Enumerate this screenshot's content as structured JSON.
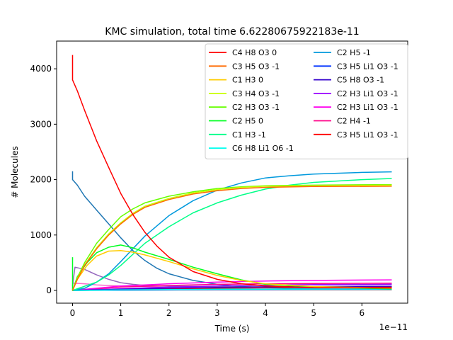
{
  "chart_data": {
    "type": "line",
    "title": "KMC simulation, total time 6.62280675922183e-11",
    "xlabel": "Time (s)",
    "ylabel": "# Molecules",
    "x_offset_label": "1e−11",
    "xlim": [
      -0.33,
      6.95
    ],
    "ylim": [
      -230,
      4500
    ],
    "xticks": [
      0,
      1,
      2,
      3,
      4,
      5,
      6
    ],
    "yticks": [
      0,
      1000,
      2000,
      3000,
      4000
    ],
    "grid": false,
    "legend": {
      "placement": "top-right",
      "columns": 2
    },
    "series": [
      {
        "name": "C4 H8 O3 0",
        "color": "#ff0000",
        "points": [
          [
            0,
            4250
          ],
          [
            0,
            3800
          ],
          [
            0.1,
            3600
          ],
          [
            0.25,
            3250
          ],
          [
            0.5,
            2700
          ],
          [
            0.75,
            2220
          ],
          [
            1,
            1750
          ],
          [
            1.25,
            1370
          ],
          [
            1.5,
            1050
          ],
          [
            1.75,
            800
          ],
          [
            2,
            600
          ],
          [
            2.5,
            340
          ],
          [
            3,
            200
          ],
          [
            3.5,
            120
          ],
          [
            4,
            80
          ],
          [
            5,
            50
          ],
          [
            6.62,
            45
          ]
        ]
      },
      {
        "name": "C3 H5 O3 -1",
        "color": "#ff6a00",
        "points": [
          [
            0,
            0
          ],
          [
            0.1,
            200
          ],
          [
            0.25,
            450
          ],
          [
            0.5,
            750
          ],
          [
            0.75,
            1000
          ],
          [
            1,
            1200
          ],
          [
            1.25,
            1370
          ],
          [
            1.5,
            1500
          ],
          [
            2,
            1640
          ],
          [
            2.5,
            1740
          ],
          [
            3,
            1800
          ],
          [
            3.5,
            1840
          ],
          [
            4,
            1860
          ],
          [
            5,
            1875
          ],
          [
            6.62,
            1880
          ]
        ]
      },
      {
        "name": "C1 H3 0",
        "color": "#ffcc00",
        "points": [
          [
            0,
            0
          ],
          [
            0.1,
            200
          ],
          [
            0.3,
            450
          ],
          [
            0.5,
            620
          ],
          [
            0.75,
            710
          ],
          [
            1,
            720
          ],
          [
            1.25,
            690
          ],
          [
            1.5,
            640
          ],
          [
            2,
            520
          ],
          [
            2.5,
            390
          ],
          [
            3,
            270
          ],
          [
            3.5,
            180
          ],
          [
            4,
            120
          ],
          [
            5,
            70
          ],
          [
            6.62,
            40
          ]
        ]
      },
      {
        "name": "C3 H4 O3 -1",
        "color": "#c8ff00",
        "points": [
          [
            0,
            0
          ],
          [
            0.1,
            210
          ],
          [
            0.25,
            460
          ],
          [
            0.5,
            770
          ],
          [
            0.75,
            1020
          ],
          [
            1,
            1220
          ],
          [
            1.25,
            1390
          ],
          [
            1.5,
            1520
          ],
          [
            2,
            1660
          ],
          [
            2.5,
            1760
          ],
          [
            3,
            1820
          ],
          [
            3.5,
            1860
          ],
          [
            4,
            1880
          ],
          [
            5,
            1890
          ],
          [
            6.62,
            1900
          ]
        ]
      },
      {
        "name": "C2 H3 O3 -1",
        "color": "#66ff00",
        "points": [
          [
            0,
            0
          ],
          [
            0.1,
            230
          ],
          [
            0.25,
            500
          ],
          [
            0.5,
            850
          ],
          [
            0.75,
            1100
          ],
          [
            1,
            1330
          ],
          [
            1.25,
            1470
          ],
          [
            1.5,
            1580
          ],
          [
            2,
            1700
          ],
          [
            2.5,
            1780
          ],
          [
            3,
            1840
          ],
          [
            3.5,
            1870
          ],
          [
            4,
            1890
          ],
          [
            5,
            1900
          ],
          [
            6.62,
            1910
          ]
        ]
      },
      {
        "name": "C2 H5 0",
        "color": "#00ff22",
        "points": [
          [
            0,
            600
          ],
          [
            0,
            0
          ],
          [
            0.1,
            250
          ],
          [
            0.3,
            500
          ],
          [
            0.5,
            680
          ],
          [
            0.75,
            780
          ],
          [
            1,
            820
          ],
          [
            1.25,
            770
          ],
          [
            1.5,
            690
          ],
          [
            2,
            560
          ],
          [
            2.5,
            420
          ],
          [
            3,
            300
          ],
          [
            3.5,
            190
          ],
          [
            4,
            110
          ],
          [
            5,
            60
          ],
          [
            6.62,
            30
          ]
        ]
      },
      {
        "name": "C1 H3 -1",
        "color": "#00ff88",
        "points": [
          [
            0,
            0
          ],
          [
            0.5,
            150
          ],
          [
            0.75,
            280
          ],
          [
            1,
            450
          ],
          [
            1.25,
            650
          ],
          [
            1.5,
            850
          ],
          [
            2,
            1150
          ],
          [
            2.5,
            1400
          ],
          [
            3,
            1580
          ],
          [
            3.5,
            1720
          ],
          [
            4,
            1830
          ],
          [
            4.5,
            1900
          ],
          [
            5,
            1950
          ],
          [
            6,
            2000
          ],
          [
            6.62,
            2020
          ]
        ]
      },
      {
        "name": "C6 H8 Li1 O6 -1",
        "color": "#00ffee",
        "points": [
          [
            0,
            0
          ],
          [
            1,
            10
          ],
          [
            2,
            15
          ],
          [
            3,
            20
          ],
          [
            4,
            22
          ],
          [
            5,
            24
          ],
          [
            6.62,
            25
          ]
        ]
      },
      {
        "name": "C2 H5 -1",
        "color": "#0099dd",
        "points": [
          [
            0,
            0
          ],
          [
            0.25,
            40
          ],
          [
            0.5,
            150
          ],
          [
            0.75,
            300
          ],
          [
            1,
            520
          ],
          [
            1.25,
            750
          ],
          [
            1.5,
            980
          ],
          [
            2,
            1350
          ],
          [
            2.5,
            1620
          ],
          [
            3,
            1810
          ],
          [
            3.5,
            1940
          ],
          [
            4,
            2030
          ],
          [
            4.5,
            2070
          ],
          [
            5,
            2100
          ],
          [
            6,
            2130
          ],
          [
            6.62,
            2140
          ]
        ]
      },
      {
        "name": "C3 H5 Li1 O3 -1",
        "color": "#0033ff",
        "points": [
          [
            0,
            0
          ],
          [
            1,
            5
          ],
          [
            2,
            10
          ],
          [
            3,
            15
          ],
          [
            4,
            18
          ],
          [
            5,
            20
          ],
          [
            6.62,
            22
          ]
        ]
      },
      {
        "name": "C5 H8 O3 -1",
        "color": "#3300cc",
        "points": [
          [
            0,
            0
          ],
          [
            1,
            20
          ],
          [
            2,
            40
          ],
          [
            3,
            55
          ],
          [
            4,
            65
          ],
          [
            5,
            70
          ],
          [
            6.62,
            75
          ]
        ]
      },
      {
        "name": "C2 H3 Li1 O3 -1",
        "color": "#9900ff",
        "points": [
          [
            0,
            0
          ],
          [
            1,
            30
          ],
          [
            2,
            60
          ],
          [
            3,
            80
          ],
          [
            4,
            95
          ],
          [
            5,
            105
          ],
          [
            6.62,
            110
          ]
        ]
      },
      {
        "name": "C2 H3 Li1 O3 -1",
        "color": "#ff00ee",
        "points": [
          [
            0,
            0
          ],
          [
            0.5,
            40
          ],
          [
            1,
            80
          ],
          [
            1.5,
            100
          ],
          [
            2,
            120
          ],
          [
            3,
            150
          ],
          [
            4,
            170
          ],
          [
            5,
            180
          ],
          [
            6.62,
            190
          ]
        ]
      },
      {
        "name": "C2 H4 -1",
        "color": "#ff0088",
        "points": [
          [
            0,
            0
          ],
          [
            0.5,
            30
          ],
          [
            1,
            60
          ],
          [
            2,
            90
          ],
          [
            3,
            110
          ],
          [
            4,
            120
          ],
          [
            5,
            125
          ],
          [
            6.62,
            130
          ]
        ]
      },
      {
        "name": "C3 H5 Li1 O3 -1",
        "color": "#ff0000",
        "points": [
          [
            0,
            0
          ],
          [
            1,
            15
          ],
          [
            2,
            30
          ],
          [
            3,
            45
          ],
          [
            4,
            55
          ],
          [
            5,
            60
          ],
          [
            6.62,
            65
          ]
        ]
      },
      {
        "name": "",
        "color": "#1f77b4",
        "points": [
          [
            0,
            2150
          ],
          [
            0,
            2000
          ],
          [
            0.1,
            1900
          ],
          [
            0.25,
            1700
          ],
          [
            0.5,
            1450
          ],
          [
            0.75,
            1200
          ],
          [
            1,
            950
          ],
          [
            1.25,
            720
          ],
          [
            1.5,
            540
          ],
          [
            1.75,
            400
          ],
          [
            2,
            300
          ],
          [
            2.5,
            180
          ],
          [
            3,
            110
          ],
          [
            3.5,
            70
          ],
          [
            4,
            50
          ],
          [
            5,
            30
          ],
          [
            6.62,
            20
          ]
        ]
      },
      {
        "name": "",
        "color": "#9467bd",
        "points": [
          [
            0,
            80
          ],
          [
            0.05,
            420
          ],
          [
            0.25,
            380
          ],
          [
            0.5,
            280
          ],
          [
            0.75,
            200
          ],
          [
            1,
            140
          ],
          [
            1.25,
            110
          ],
          [
            1.5,
            90
          ],
          [
            2,
            80
          ],
          [
            3,
            70
          ],
          [
            4,
            60
          ],
          [
            5,
            55
          ],
          [
            6.62,
            50
          ]
        ]
      },
      {
        "name": "",
        "color": "#ff66cc",
        "points": [
          [
            0,
            130
          ],
          [
            0.25,
            120
          ],
          [
            0.5,
            100
          ],
          [
            1,
            80
          ],
          [
            1.5,
            70
          ],
          [
            2,
            60
          ],
          [
            3,
            50
          ],
          [
            4,
            45
          ],
          [
            6.62,
            40
          ]
        ]
      },
      {
        "name": "",
        "color": "#8c564b",
        "points": [
          [
            0,
            0
          ],
          [
            1,
            10
          ],
          [
            2,
            20
          ],
          [
            3,
            35
          ],
          [
            4,
            45
          ],
          [
            5,
            50
          ],
          [
            6.62,
            55
          ]
        ]
      },
      {
        "name": "",
        "color": "#7f7f7f",
        "points": [
          [
            0,
            0
          ],
          [
            1,
            5
          ],
          [
            3,
            10
          ],
          [
            6.62,
            12
          ]
        ]
      },
      {
        "name": "",
        "color": "#17becf",
        "points": [
          [
            0,
            0
          ],
          [
            1,
            20
          ],
          [
            2,
            35
          ],
          [
            3,
            50
          ],
          [
            4,
            60
          ],
          [
            6.62,
            70
          ]
        ]
      }
    ]
  }
}
